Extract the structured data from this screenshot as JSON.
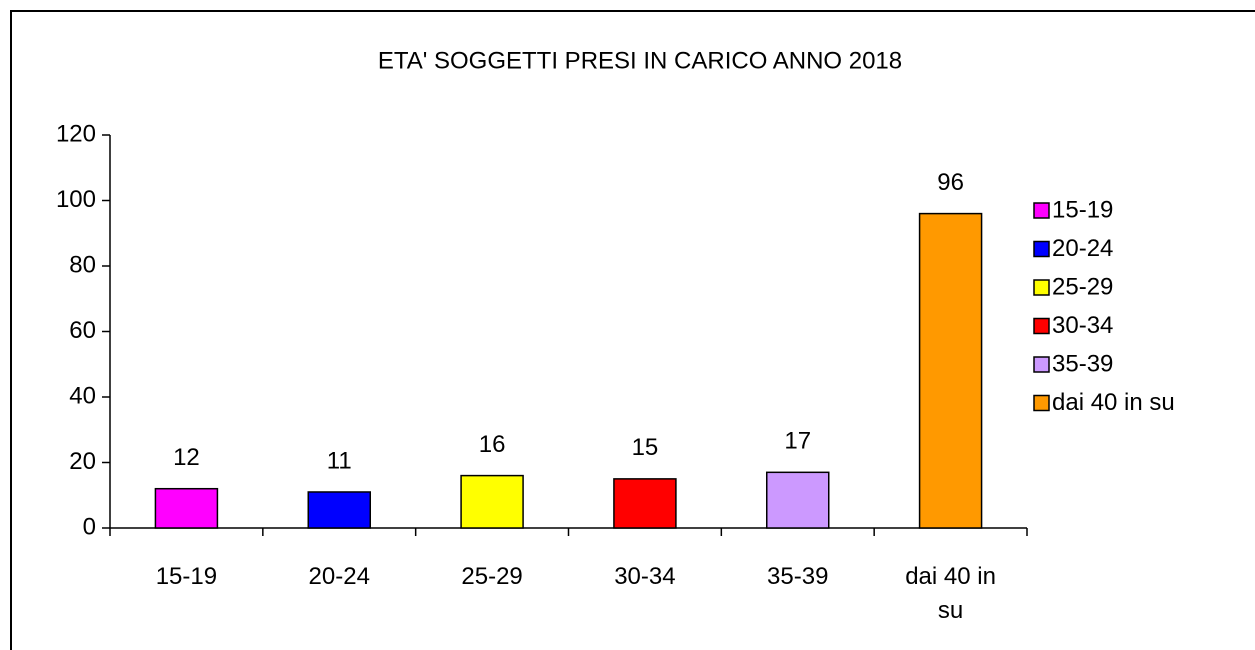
{
  "chart_data": {
    "type": "bar",
    "title": "ETA' SOGGETTI PRESI IN CARICO ANNO 2018",
    "categories": [
      "15-19",
      "20-24",
      "25-29",
      "30-34",
      "35-39",
      "dai 40 in su"
    ],
    "values": [
      12,
      11,
      16,
      15,
      17,
      96
    ],
    "colors": [
      "#ff00ff",
      "#0000ff",
      "#ffff00",
      "#ff0000",
      "#cc99ff",
      "#ff9900"
    ],
    "ylim": [
      0,
      120
    ],
    "yticks": [
      0,
      20,
      40,
      60,
      80,
      100,
      120
    ],
    "legend": "right"
  }
}
